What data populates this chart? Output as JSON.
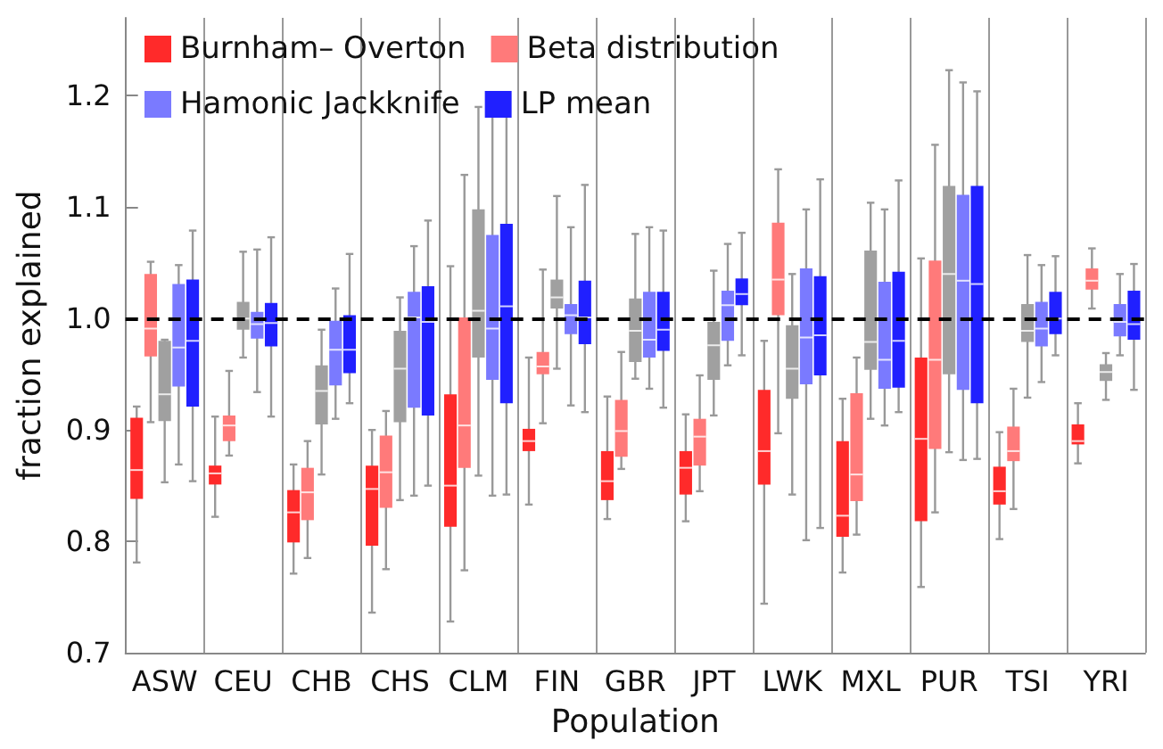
{
  "chart_data": {
    "type": "box",
    "xlabel": "Population",
    "ylabel": "fraction explained",
    "categories": [
      "ASW",
      "CEU",
      "CHB",
      "CHS",
      "CLM",
      "FIN",
      "GBR",
      "JPT",
      "LWK",
      "MXL",
      "PUR",
      "TSI",
      "YRI"
    ],
    "series": [
      {
        "name": "Burnham– Overton",
        "color": "#ff2a2a",
        "boxes": [
          {
            "low": 0.781,
            "q1": 0.838,
            "median": 0.864,
            "q3": 0.911,
            "high": 0.921
          },
          {
            "low": 0.822,
            "q1": 0.851,
            "median": 0.861,
            "q3": 0.868,
            "high": 0.912
          },
          {
            "low": 0.771,
            "q1": 0.799,
            "median": 0.826,
            "q3": 0.846,
            "high": 0.869
          },
          {
            "low": 0.736,
            "q1": 0.796,
            "median": 0.847,
            "q3": 0.868,
            "high": 0.9
          },
          {
            "low": 0.728,
            "q1": 0.813,
            "median": 0.85,
            "q3": 0.932,
            "high": 1.047
          },
          {
            "low": 0.833,
            "q1": 0.881,
            "median": 0.89,
            "q3": 0.901,
            "high": 0.965
          },
          {
            "low": 0.82,
            "q1": 0.837,
            "median": 0.854,
            "q3": 0.881,
            "high": 0.93
          },
          {
            "low": 0.818,
            "q1": 0.842,
            "median": 0.866,
            "q3": 0.881,
            "high": 0.914
          },
          {
            "low": 0.744,
            "q1": 0.851,
            "median": 0.881,
            "q3": 0.936,
            "high": 0.98
          },
          {
            "low": 0.772,
            "q1": 0.804,
            "median": 0.823,
            "q3": 0.89,
            "high": 0.928
          },
          {
            "low": 0.759,
            "q1": 0.818,
            "median": 0.892,
            "q3": 0.965,
            "high": 1.054
          },
          {
            "low": 0.802,
            "q1": 0.833,
            "median": 0.845,
            "q3": 0.867,
            "high": 0.898
          },
          {
            "low": 0.87,
            "q1": 0.887,
            "median": 0.89,
            "q3": 0.905,
            "high": 0.924
          }
        ]
      },
      {
        "name": "Beta distribution",
        "color": "#ff7a7a",
        "boxes": [
          {
            "low": 0.907,
            "q1": 0.966,
            "median": 0.991,
            "q3": 1.04,
            "high": 1.051
          },
          {
            "low": 0.877,
            "q1": 0.89,
            "median": 0.904,
            "q3": 0.913,
            "high": 0.953
          },
          {
            "low": 0.785,
            "q1": 0.819,
            "median": 0.844,
            "q3": 0.866,
            "high": 0.89
          },
          {
            "low": 0.775,
            "q1": 0.83,
            "median": 0.862,
            "q3": 0.895,
            "high": 0.917
          },
          {
            "low": 0.774,
            "q1": 0.866,
            "median": 0.904,
            "q3": 1.001,
            "high": 1.129
          },
          {
            "low": 0.906,
            "q1": 0.95,
            "median": 0.957,
            "q3": 0.97,
            "high": 1.044
          },
          {
            "low": 0.865,
            "q1": 0.876,
            "median": 0.899,
            "q3": 0.927,
            "high": 0.97
          },
          {
            "low": 0.845,
            "q1": 0.868,
            "median": 0.894,
            "q3": 0.91,
            "high": 0.949
          },
          {
            "low": 0.897,
            "q1": 1.003,
            "median": 1.035,
            "q3": 1.086,
            "high": 1.134
          },
          {
            "low": 0.806,
            "q1": 0.836,
            "median": 0.86,
            "q3": 0.933,
            "high": 0.965
          },
          {
            "low": 0.826,
            "q1": 0.883,
            "median": 0.963,
            "q3": 1.052,
            "high": 1.156
          },
          {
            "low": 0.829,
            "q1": 0.872,
            "median": 0.881,
            "q3": 0.903,
            "high": 0.937
          },
          {
            "low": 1.009,
            "q1": 1.026,
            "median": 1.034,
            "q3": 1.045,
            "high": 1.063
          }
        ]
      },
      {
        "color": "#a0a0a0",
        "boxes": [
          {
            "low": 0.853,
            "q1": 0.908,
            "median": 0.932,
            "q3": 0.98,
            "high": 0.981
          },
          {
            "low": 0.965,
            "q1": 0.99,
            "median": 1.0,
            "q3": 1.015,
            "high": 1.06
          },
          {
            "low": 0.86,
            "q1": 0.905,
            "median": 0.935,
            "q3": 0.958,
            "high": 0.99
          },
          {
            "low": 0.837,
            "q1": 0.907,
            "median": 0.955,
            "q3": 0.989,
            "high": 1.019
          },
          {
            "low": 0.859,
            "q1": 0.965,
            "median": 1.007,
            "q3": 1.098,
            "high": 1.19
          },
          {
            "low": 0.955,
            "q1": 1.009,
            "median": 1.019,
            "q3": 1.035,
            "high": 1.11
          },
          {
            "low": 0.946,
            "q1": 0.961,
            "median": 0.989,
            "q3": 1.018,
            "high": 1.076
          },
          {
            "low": 0.913,
            "q1": 0.945,
            "median": 0.976,
            "q3": 0.997,
            "high": 1.043
          },
          {
            "low": 0.842,
            "q1": 0.928,
            "median": 0.955,
            "q3": 0.994,
            "high": 1.04
          },
          {
            "low": 0.91,
            "q1": 0.954,
            "median": 0.979,
            "q3": 1.061,
            "high": 1.104
          },
          {
            "low": 0.88,
            "q1": 0.95,
            "median": 1.04,
            "q3": 1.119,
            "high": 1.223
          },
          {
            "low": 0.929,
            "q1": 0.979,
            "median": 0.989,
            "q3": 1.013,
            "high": 1.057
          },
          {
            "low": 0.927,
            "q1": 0.944,
            "median": 0.952,
            "q3": 0.959,
            "high": 0.969
          }
        ]
      },
      {
        "name": "Hamonic Jackknife",
        "color": "#7a7aff",
        "boxes": [
          {
            "low": 0.869,
            "q1": 0.939,
            "median": 0.974,
            "q3": 1.031,
            "high": 1.048
          },
          {
            "low": 0.934,
            "q1": 0.982,
            "median": 0.995,
            "q3": 1.006,
            "high": 1.062
          },
          {
            "low": 0.91,
            "q1": 0.94,
            "median": 0.972,
            "q3": 0.998,
            "high": 1.027
          },
          {
            "low": 0.841,
            "q1": 0.92,
            "median": 1.001,
            "q3": 1.024,
            "high": 1.065
          },
          {
            "low": 0.841,
            "q1": 0.945,
            "median": 0.991,
            "q3": 1.075,
            "high": 1.193
          },
          {
            "low": 0.922,
            "q1": 0.986,
            "median": 1.003,
            "q3": 1.013,
            "high": 1.082
          },
          {
            "low": 0.937,
            "q1": 0.965,
            "median": 0.981,
            "q3": 1.024,
            "high": 1.082
          },
          {
            "low": 0.958,
            "q1": 0.98,
            "median": 1.012,
            "q3": 1.025,
            "high": 1.067
          },
          {
            "low": 0.801,
            "q1": 0.941,
            "median": 0.983,
            "q3": 1.045,
            "high": 1.098
          },
          {
            "low": 0.904,
            "q1": 0.937,
            "median": 0.963,
            "q3": 1.033,
            "high": 1.098
          },
          {
            "low": 0.873,
            "q1": 0.936,
            "median": 1.034,
            "q3": 1.111,
            "high": 1.212
          },
          {
            "low": 0.943,
            "q1": 0.975,
            "median": 0.991,
            "q3": 1.015,
            "high": 1.048
          },
          {
            "low": 0.967,
            "q1": 0.984,
            "median": 0.997,
            "q3": 1.013,
            "high": 1.04
          }
        ]
      },
      {
        "name": "LP mean",
        "color": "#2020ff",
        "boxes": [
          {
            "low": 0.854,
            "q1": 0.921,
            "median": 0.98,
            "q3": 1.035,
            "high": 1.079
          },
          {
            "low": 0.912,
            "q1": 0.975,
            "median": 0.996,
            "q3": 1.014,
            "high": 1.073
          },
          {
            "low": 0.924,
            "q1": 0.951,
            "median": 0.972,
            "q3": 1.003,
            "high": 1.058
          },
          {
            "low": 0.85,
            "q1": 0.913,
            "median": 0.997,
            "q3": 1.029,
            "high": 1.088
          },
          {
            "low": 0.842,
            "q1": 0.924,
            "median": 1.011,
            "q3": 1.085,
            "high": 1.194
          },
          {
            "low": 0.916,
            "q1": 0.977,
            "median": 1.001,
            "q3": 1.034,
            "high": 1.12
          },
          {
            "low": 0.92,
            "q1": 0.971,
            "median": 0.99,
            "q3": 1.024,
            "high": 1.079
          },
          {
            "low": 0.967,
            "q1": 1.012,
            "median": 1.022,
            "q3": 1.036,
            "high": 1.077
          },
          {
            "low": 0.812,
            "q1": 0.949,
            "median": 0.985,
            "q3": 1.038,
            "high": 1.125
          },
          {
            "low": 0.916,
            "q1": 0.938,
            "median": 0.98,
            "q3": 1.042,
            "high": 1.124
          },
          {
            "low": 0.874,
            "q1": 0.924,
            "median": 1.031,
            "q3": 1.119,
            "high": 1.204
          },
          {
            "low": 0.967,
            "q1": 0.986,
            "median": 1.0,
            "q3": 1.024,
            "high": 1.056
          },
          {
            "low": 0.936,
            "q1": 0.981,
            "median": 0.995,
            "q3": 1.025,
            "high": 1.049
          }
        ]
      }
    ],
    "ylim": [
      0.7,
      1.27
    ],
    "yticks": [
      0.7,
      0.8,
      0.9,
      {
        "value": 1,
        "label": "1.0"
      },
      1.1,
      1.2
    ],
    "ref_lines": [
      {
        "axis": "y",
        "value": 1,
        "color": "#000000",
        "line_style": "dashed"
      }
    ],
    "grid": "x",
    "legend": "top"
  }
}
